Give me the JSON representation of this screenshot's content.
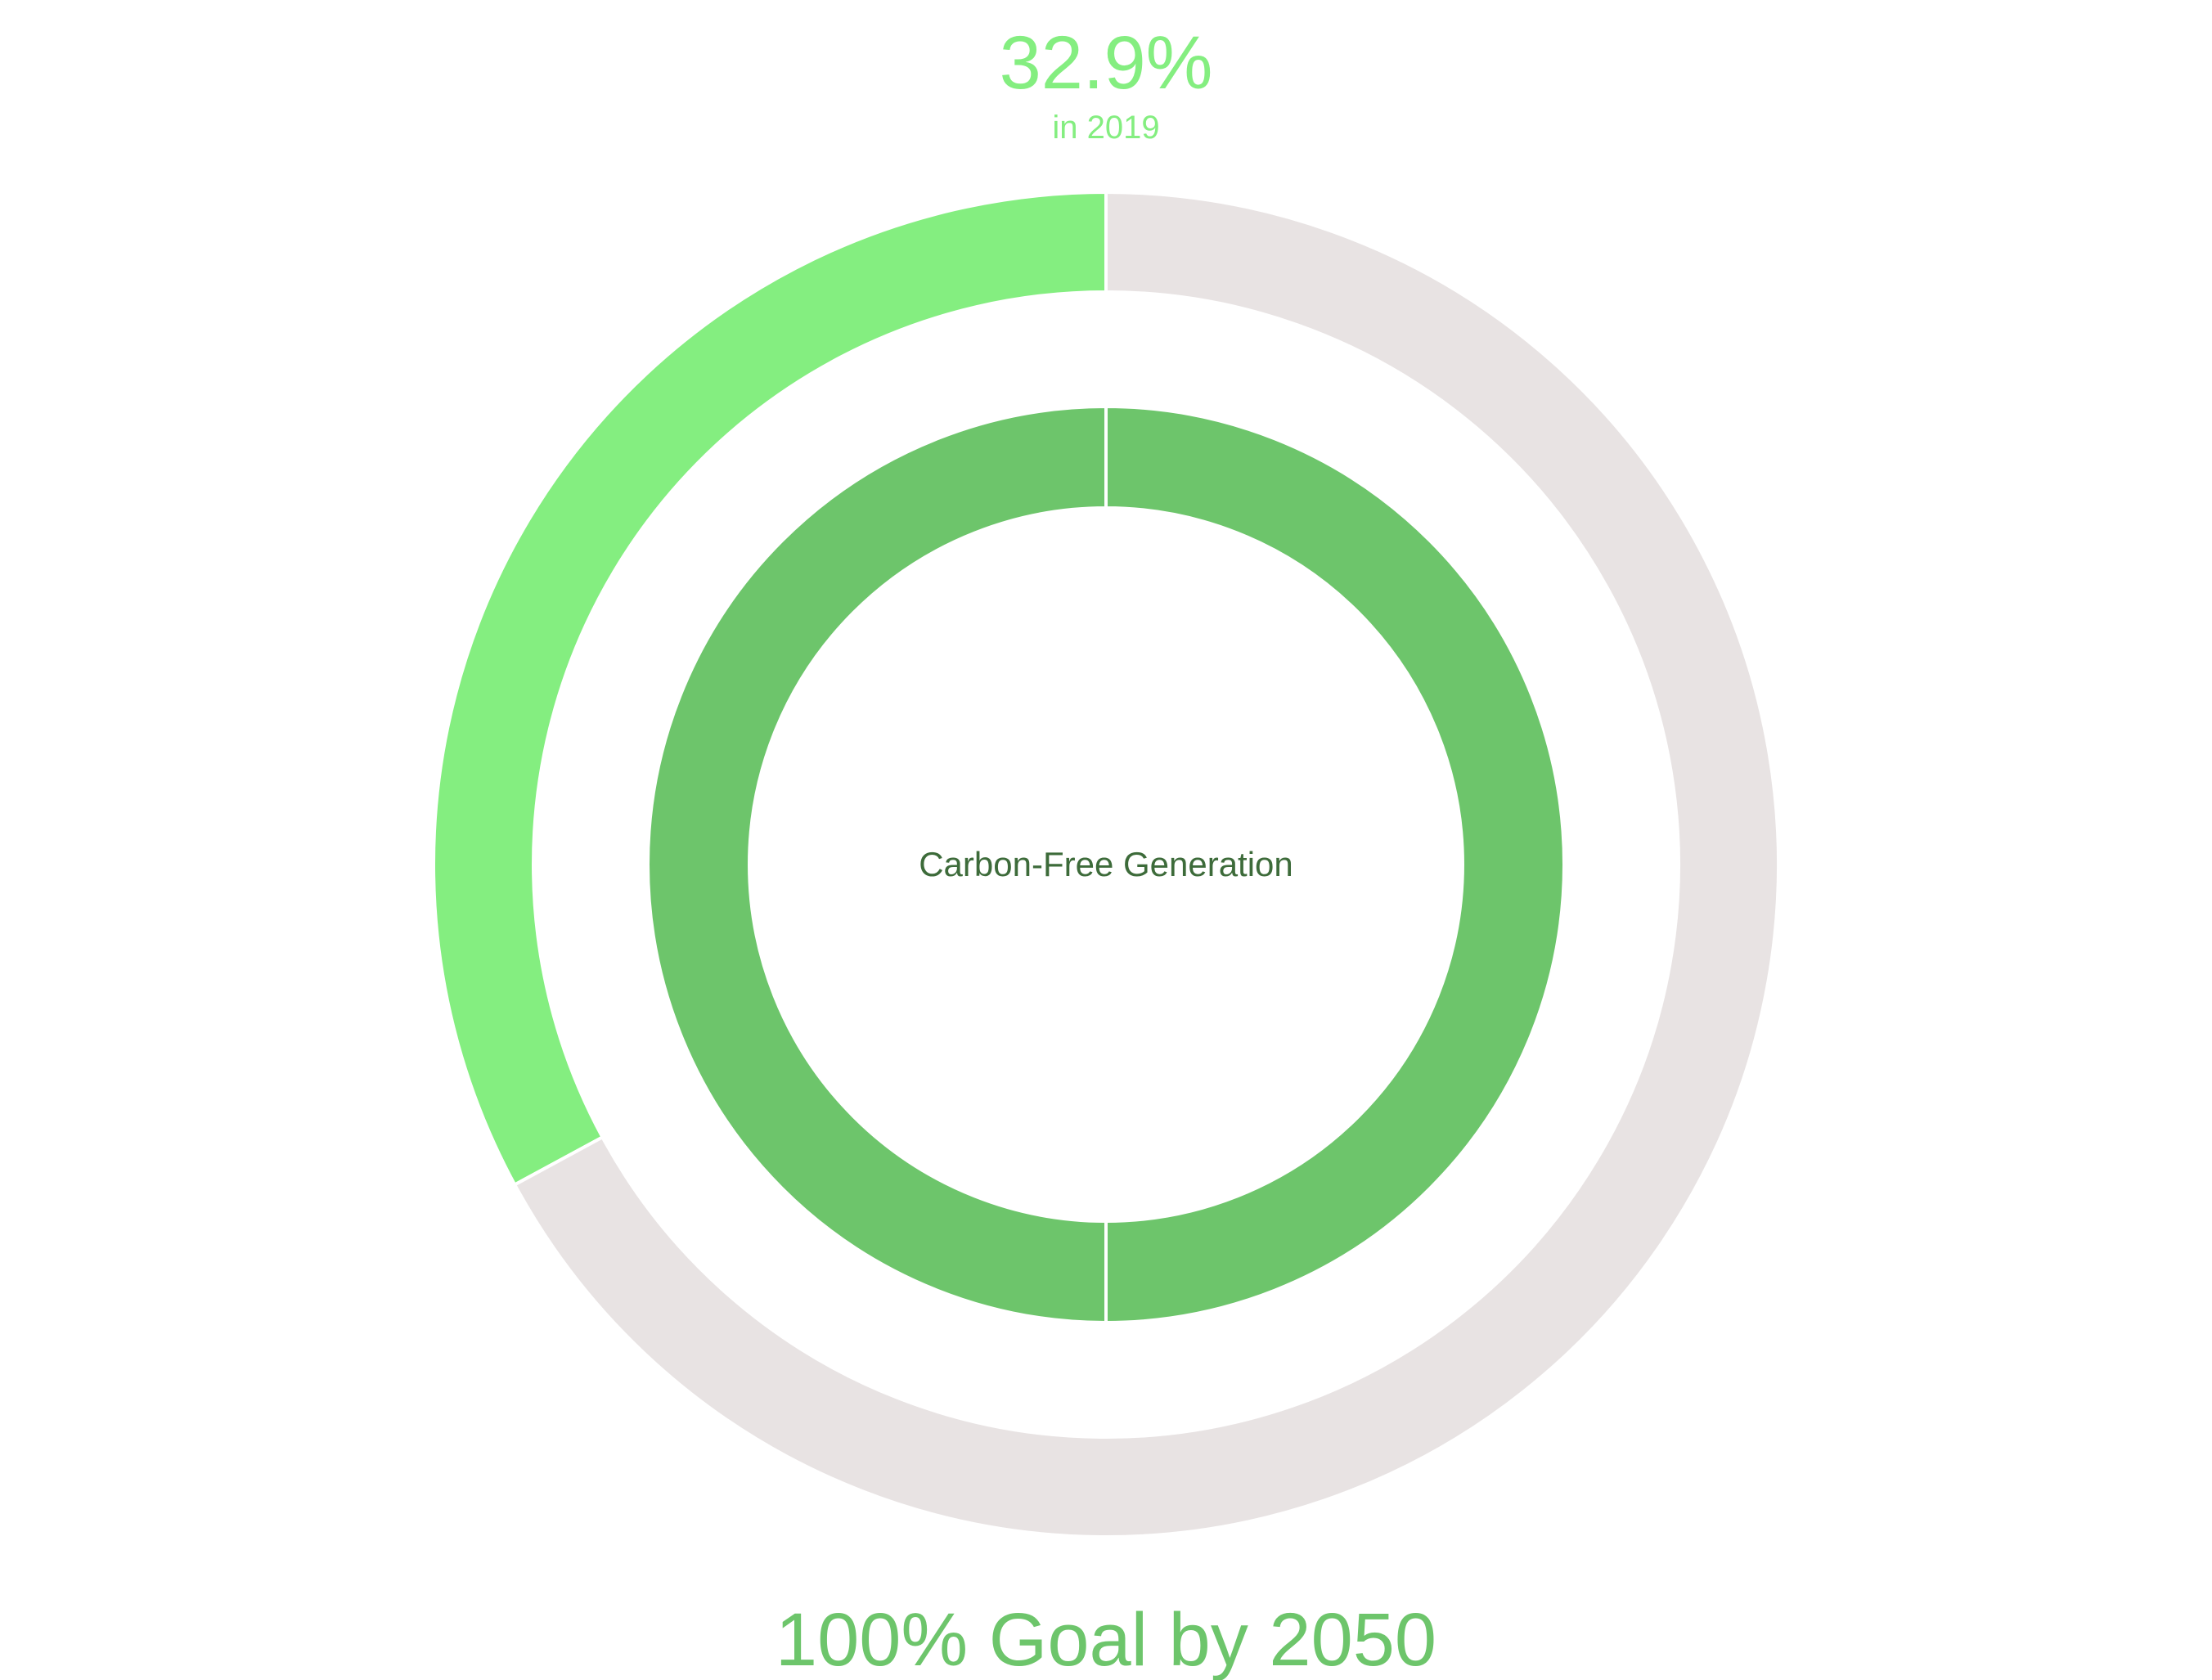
{
  "chart_data": {
    "type": "pie",
    "variant": "nested-donut",
    "center_label": "Carbon-Free Generation",
    "headline_value": "32.9%",
    "headline_subtitle": "in 2019",
    "footer": "100% Goal by 2050",
    "rings": [
      {
        "ring": "outer",
        "slices": [
          {
            "value": 32.9,
            "color": "#84ee80"
          },
          {
            "value": 67.1,
            "color": "#e8e3e3"
          }
        ]
      },
      {
        "ring": "inner",
        "slices": [
          {
            "value": 50,
            "color": "#6dc56b"
          },
          {
            "value": 50,
            "color": "#6dc56b"
          }
        ]
      }
    ]
  },
  "colors": {
    "headline": "#84ee80",
    "center_label": "#3d6b3a",
    "footer": "#6dc56b",
    "background": "#ffffff",
    "slice_border": "#ffffff"
  }
}
